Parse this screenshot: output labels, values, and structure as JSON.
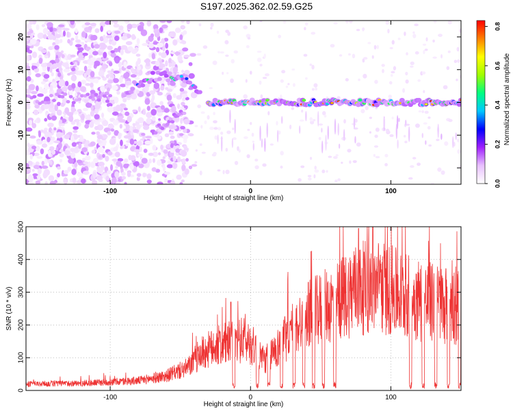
{
  "title": "S197.2025.362.02.59.G25",
  "chart_data": [
    {
      "type": "heatmap",
      "xlabel": "Height of straight line (km)",
      "ylabel": "Frequency (Hz)",
      "xlim": [
        -160,
        150
      ],
      "ylim": [
        -25,
        25
      ],
      "x_ticks": [
        -100,
        0,
        100
      ],
      "y_ticks": [
        -20,
        -10,
        0,
        10,
        20
      ],
      "colorbar": {
        "label": "Normalized spectral amplitude",
        "range": [
          0.0,
          0.83
        ],
        "ticks": [
          "0.0",
          "0.2",
          "0.4",
          "0.6",
          "0.8"
        ],
        "colors": [
          "#ffffff",
          "#e8c0ff",
          "#a020ff",
          "#0000ff",
          "#00c8ff",
          "#00ff80",
          "#a0ff00",
          "#ffff00",
          "#ff8000",
          "#ff0000"
        ]
      },
      "features": [
        {
          "name": "main_band",
          "x_range": [
            -30,
            150
          ],
          "frequency_hz": 0,
          "peak_amplitude": 0.8
        },
        {
          "name": "upper_branch",
          "x_range": [
            -90,
            -35
          ],
          "frequency_hz_range": [
            3,
            8
          ]
        },
        {
          "name": "lower_branch",
          "x_range": [
            -70,
            -45
          ],
          "frequency_hz_range": [
            -9,
            -2
          ]
        },
        {
          "name": "noise_region",
          "x_range": [
            -160,
            -45
          ],
          "frequency_hz_range": [
            -25,
            25
          ]
        }
      ]
    },
    {
      "type": "line",
      "xlabel": "Height of straight line (km)",
      "ylabel": "SNR (10 * v/v)",
      "xlim": [
        -160,
        150
      ],
      "ylim": [
        0,
        500
      ],
      "x_ticks": [
        -100,
        0,
        100
      ],
      "y_ticks": [
        0,
        100,
        200,
        300,
        400,
        500
      ],
      "color": "#ee3333",
      "profile": [
        {
          "x": -160,
          "y": 20
        },
        {
          "x": -120,
          "y": 22
        },
        {
          "x": -80,
          "y": 30
        },
        {
          "x": -60,
          "y": 45
        },
        {
          "x": -45,
          "y": 70
        },
        {
          "x": -35,
          "y": 110
        },
        {
          "x": -25,
          "y": 130
        },
        {
          "x": -15,
          "y": 140
        },
        {
          "x": -5,
          "y": 150
        },
        {
          "x": 0,
          "y": 140
        },
        {
          "x": 10,
          "y": 90
        },
        {
          "x": 20,
          "y": 130
        },
        {
          "x": 30,
          "y": 180
        },
        {
          "x": 40,
          "y": 220
        },
        {
          "x": 50,
          "y": 240
        },
        {
          "x": 60,
          "y": 260
        },
        {
          "x": 75,
          "y": 300
        },
        {
          "x": 90,
          "y": 310
        },
        {
          "x": 110,
          "y": 280
        },
        {
          "x": 130,
          "y": 260
        },
        {
          "x": 150,
          "y": 250
        }
      ],
      "dropouts_x": [
        -12,
        5,
        13,
        22,
        31,
        38,
        45,
        52,
        60,
        114,
        123,
        132,
        141,
        149
      ],
      "peaks": [
        {
          "x": 77,
          "y": 495
        },
        {
          "x": 87,
          "y": 500
        },
        {
          "x": -14,
          "y": 270
        }
      ]
    }
  ]
}
